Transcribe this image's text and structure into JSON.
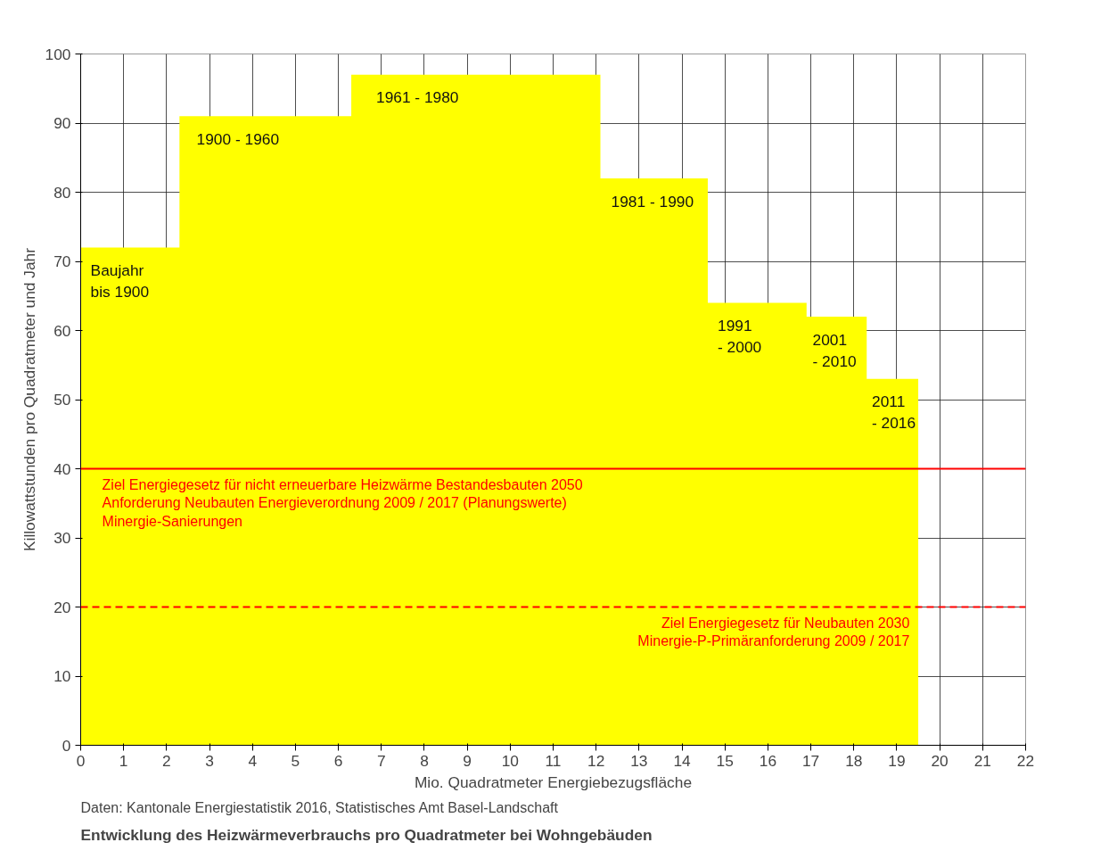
{
  "chart_data": {
    "type": "area",
    "title": "Entwicklung des Heizwärmeverbrauchs pro Quadratmeter bei Wohngebäuden",
    "subtitle": "Daten: Kantonale Energiestatistik 2016, Statistisches Amt Basel-Landschaft",
    "xlabel": "Mio. Quadratmeter Energiebezugsfläche",
    "ylabel": "Killowattstunden pro Quadratmeter und Jahr",
    "x": [
      0,
      2.3,
      2.3,
      6.3,
      6.3,
      12.1,
      12.1,
      14.6,
      14.6,
      16.9,
      16.9,
      18.3,
      18.3,
      19.5
    ],
    "series": [
      {
        "color": "#ffff00",
        "values": [
          72,
          72,
          91,
          91,
          97,
          97,
          82,
          82,
          64,
          64,
          62,
          62,
          53,
          53
        ]
      }
    ],
    "xlim": [
      0,
      22
    ],
    "xticks": [
      0,
      1,
      2,
      3,
      4,
      5,
      6,
      7,
      8,
      9,
      10,
      11,
      12,
      13,
      14,
      15,
      16,
      17,
      18,
      19,
      20,
      21,
      22
    ],
    "ylim": [
      0,
      100
    ],
    "yticks": [
      0,
      10,
      20,
      30,
      40,
      50,
      60,
      70,
      80,
      90,
      100
    ],
    "grid": true,
    "ref_lines": [
      {
        "axis": "y",
        "value": 40,
        "label": "Ziel Energiegesetz für nicht erneuerbare Heizwärme Bestandesbauten 2050\nAnforderung Neubauten Energieverordnung 2009 / 2017 (Planungswerte)\nMinergie-Sanierungen",
        "color": "#ff0000",
        "line_style": "solid"
      },
      {
        "axis": "y",
        "value": 20,
        "label": "Ziel Energiegesetz für Neubauten 2030\nMinergie-P-Primäranforderung 2009 / 2017",
        "color": "#ff0000",
        "line_style": "dashed"
      }
    ],
    "annotations": [
      "Baujahr\nbis 1900",
      "1900 - 1960",
      "1961 - 1980",
      "1981 - 1990",
      "1991\n- 2000",
      "2001\n- 2010",
      "2011\n- 2016"
    ]
  }
}
